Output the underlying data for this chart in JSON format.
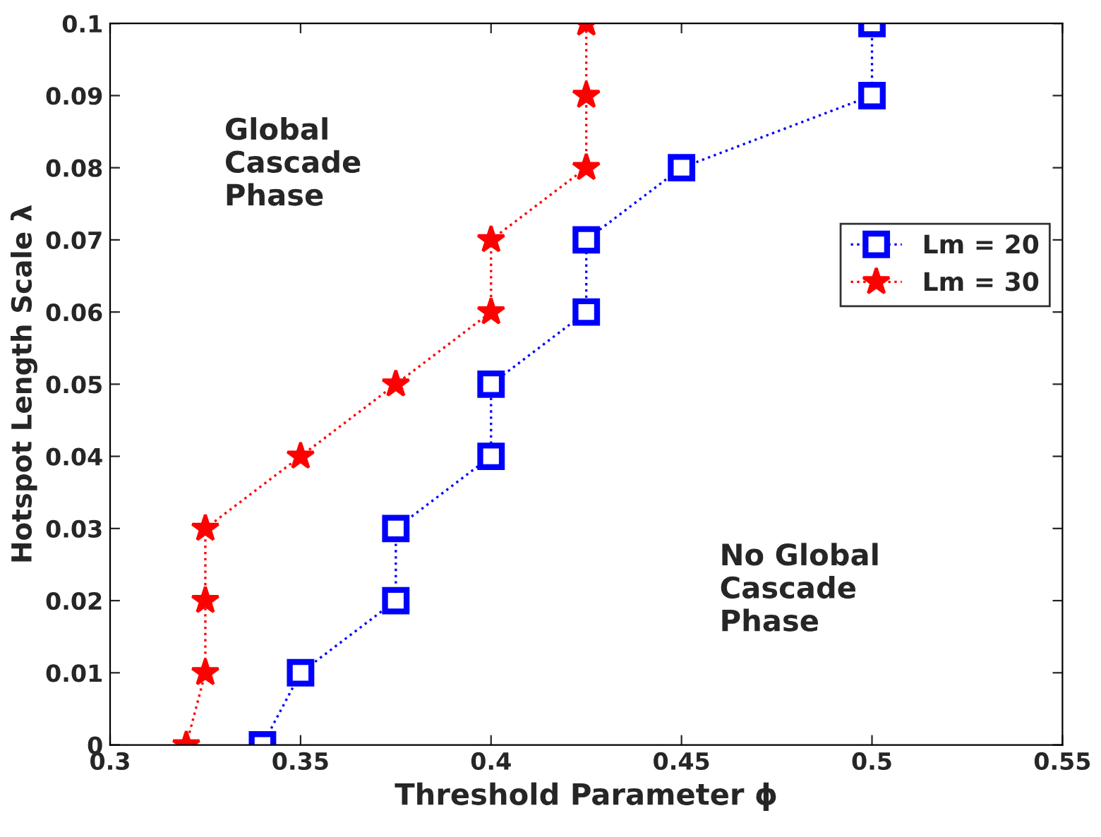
{
  "chart_data": {
    "type": "line",
    "xlabel": "Threshold Parameter ϕ",
    "ylabel": "Hotspot Length Scale λ",
    "xlim": [
      0.3,
      0.55
    ],
    "xticks": [
      0.3,
      0.35,
      0.4,
      0.45,
      0.5,
      0.55
    ],
    "ylim": [
      0,
      0.1
    ],
    "yticks": [
      0,
      0.01,
      0.02,
      0.03,
      0.04,
      0.05,
      0.06,
      0.07,
      0.08,
      0.09,
      0.1
    ],
    "grid": false,
    "legend": "top right",
    "line_style": "dotted",
    "annotations": [
      "Global\nCascade\nPhase",
      "No Global\nCascade\nPhase"
    ],
    "series": [
      {
        "name": "Lm = 20",
        "color": "#0000ff",
        "marker": "square",
        "x": [
          0.34,
          0.35,
          0.375,
          0.375,
          0.4,
          0.4,
          0.425,
          0.425,
          0.45,
          0.5,
          0.5
        ],
        "values": [
          0,
          0.01,
          0.02,
          0.03,
          0.04,
          0.05,
          0.06,
          0.07,
          0.08,
          0.09,
          0.1
        ]
      },
      {
        "name": "Lm = 30",
        "color": "#ff0000",
        "marker": "star",
        "x": [
          0.32,
          0.325,
          0.325,
          0.325,
          0.35,
          0.375,
          0.4,
          0.4,
          0.425,
          0.425,
          0.425
        ],
        "values": [
          0,
          0.01,
          0.02,
          0.03,
          0.04,
          0.05,
          0.06,
          0.07,
          0.08,
          0.09,
          0.1
        ]
      }
    ]
  }
}
